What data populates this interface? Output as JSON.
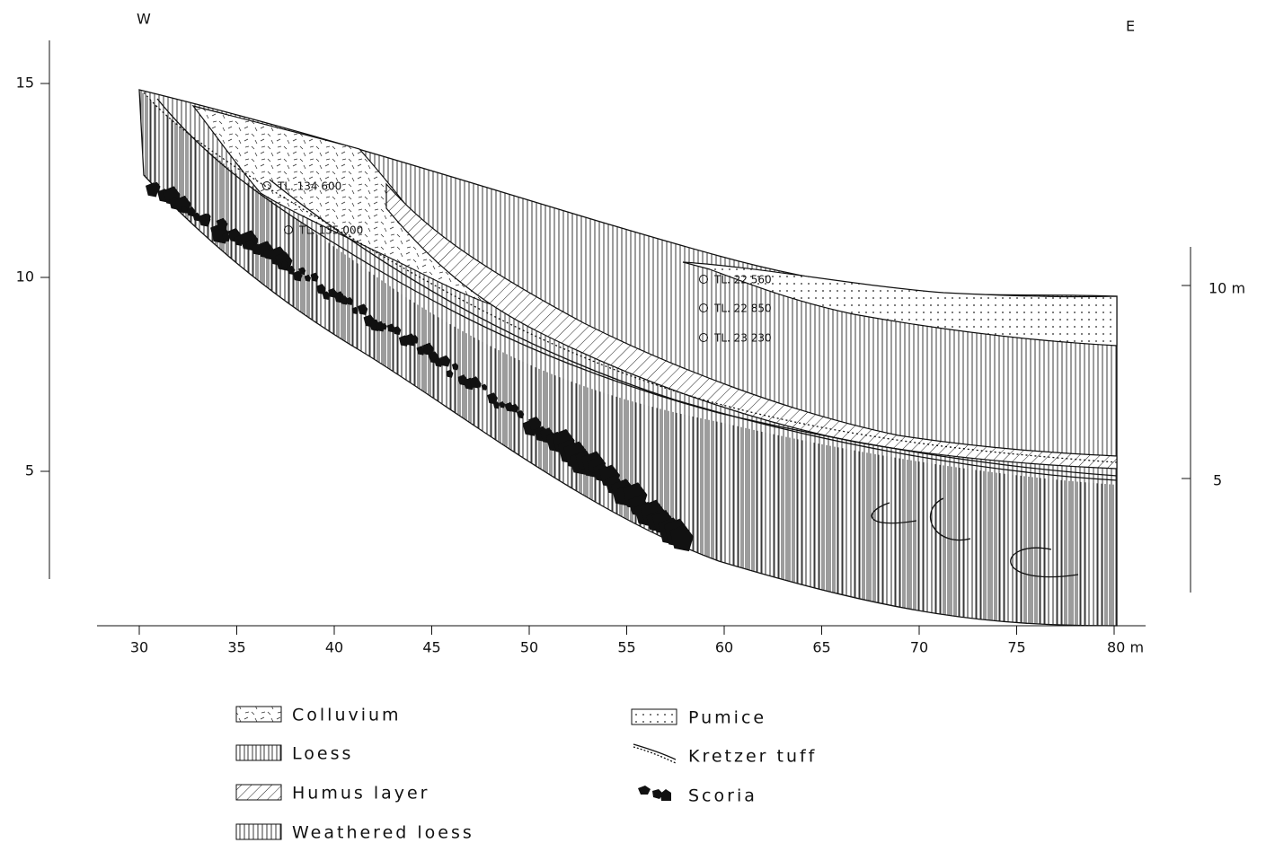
{
  "header": {
    "west": "W",
    "east": "E"
  },
  "axes": {
    "left_ticks": [
      "15",
      "10",
      "5"
    ],
    "right_ticks": [
      "10 m",
      "5"
    ],
    "bottom_ticks": [
      "30",
      "35",
      "40",
      "45",
      "50",
      "55",
      "60",
      "65",
      "70",
      "75",
      "80 m"
    ]
  },
  "samples": [
    "TL. 134 600",
    "TL. 135 000",
    "TL. 22 560",
    "TL. 22 850",
    "TL. 23 230"
  ],
  "legend": [
    "Colluvium",
    "Loess",
    "Humus layer",
    "Weathered loess",
    "Pumice",
    "Kretzer tuff",
    "Scoria"
  ]
}
